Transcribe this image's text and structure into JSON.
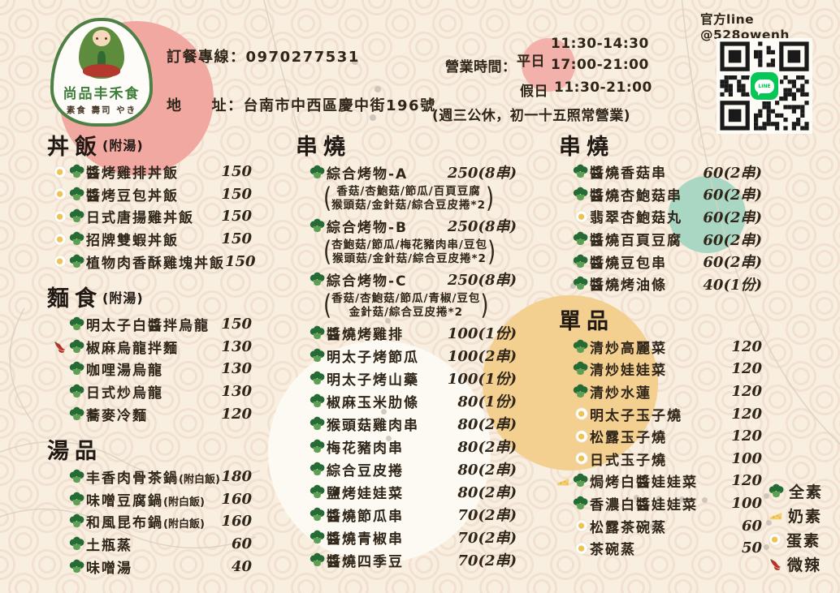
{
  "restaurant": {
    "logo_title": "尚品丰禾食",
    "logo_subtitle": "素食 壽司 やき",
    "phone": "訂餐專線：0970277531",
    "address_label": "地",
    "address_value": "址：台南市中西區慶中街196號",
    "line_label": "官方line @528owenh"
  },
  "hours": {
    "label": "營業時間：",
    "weekday_label": "平日",
    "weekday_time_1": "11:30-14:30",
    "weekday_time_2": "17:00-21:00",
    "holiday_label": "假日",
    "holiday_time": "11:30-21:00",
    "note": "(週三公休，初一十五照常營業)"
  },
  "columns": [
    {
      "sections": [
        {
          "title": "丼飯",
          "title_note": "(附湯)",
          "items": [
            {
              "icons": [
                "egg",
                "broccoli"
              ],
              "name": "醬烤雞排丼飯",
              "price": "150"
            },
            {
              "icons": [
                "egg",
                "broccoli"
              ],
              "name": "醬烤豆包丼飯",
              "price": "150"
            },
            {
              "icons": [
                "egg",
                "broccoli"
              ],
              "name": "日式唐揚雞丼飯",
              "price": "150"
            },
            {
              "icons": [
                "egg",
                "broccoli"
              ],
              "name": "招牌雙蝦丼飯",
              "price": "150"
            },
            {
              "icons": [
                "egg",
                "broccoli"
              ],
              "name": "植物肉香酥雞塊丼飯",
              "price": "150"
            }
          ]
        },
        {
          "title": "麵食",
          "title_note": "(附湯)",
          "items": [
            {
              "icons": [
                "broccoli"
              ],
              "name": "明太子白醬拌烏龍",
              "price": "150"
            },
            {
              "icons": [
                "chili",
                "broccoli"
              ],
              "name": "椒麻烏龍拌麵",
              "price": "130"
            },
            {
              "icons": [
                "broccoli"
              ],
              "name": "咖哩湯烏龍",
              "price": "130"
            },
            {
              "icons": [
                "broccoli"
              ],
              "name": "日式炒烏龍",
              "price": "130"
            },
            {
              "icons": [
                "broccoli"
              ],
              "name": "蕎麥冷麵",
              "price": "120"
            }
          ]
        },
        {
          "title": "湯品",
          "items": [
            {
              "icons": [
                "broccoli"
              ],
              "name": "丰香肉骨茶鍋",
              "note": "(附白飯)",
              "price": "180"
            },
            {
              "icons": [
                "broccoli"
              ],
              "name": "味噌豆腐鍋",
              "note": "(附白飯)",
              "price": "160"
            },
            {
              "icons": [
                "broccoli"
              ],
              "name": "和風昆布鍋",
              "note": "(附白飯)",
              "price": "160"
            },
            {
              "icons": [
                "broccoli"
              ],
              "name": "土瓶蒸",
              "price": "60"
            },
            {
              "icons": [
                "broccoli"
              ],
              "name": "味噌湯",
              "price": "40"
            }
          ]
        }
      ]
    },
    {
      "sections": [
        {
          "title": "串燒",
          "items": [
            {
              "icons": [
                "broccoli"
              ],
              "name": "綜合烤物-A",
              "price": "250(8串)",
              "sub": [
                "香菇/杏鮑菇/節瓜/百頁豆腐",
                "猴頭菇/金針菇/綜合豆皮捲*2"
              ]
            },
            {
              "icons": [
                "broccoli"
              ],
              "name": "綜合烤物-B",
              "price": "250(8串)",
              "sub": [
                "杏鮑菇/節瓜/梅花豬肉串/豆包",
                "猴頭菇/金針菇/綜合豆皮捲*2"
              ]
            },
            {
              "icons": [
                "broccoli"
              ],
              "name": "綜合烤物-C",
              "price": "250(8串)",
              "sub": [
                "香菇/杏鮑菇/節瓜/青椒/豆包",
                "金針菇/綜合豆皮捲*2"
              ]
            },
            {
              "icons": [
                "broccoli"
              ],
              "name": "醬燒烤雞排",
              "price": "100(1份)"
            },
            {
              "icons": [
                "broccoli"
              ],
              "name": "明太子烤節瓜",
              "price": "100(2串)"
            },
            {
              "icons": [
                "broccoli"
              ],
              "name": "明太子烤山藥",
              "price": "100(1份)"
            },
            {
              "icons": [
                "broccoli"
              ],
              "name": "椒麻玉米肋條",
              "price": "80(1份)"
            },
            {
              "icons": [
                "broccoli"
              ],
              "name": "猴頭菇雞肉串",
              "price": "80(2串)"
            },
            {
              "icons": [
                "broccoli"
              ],
              "name": "梅花豬肉串",
              "price": "80(2串)"
            },
            {
              "icons": [
                "broccoli"
              ],
              "name": "綜合豆皮捲",
              "price": "80(2串)"
            },
            {
              "icons": [
                "broccoli"
              ],
              "name": "鹽烤娃娃菜",
              "price": "80(2串)"
            },
            {
              "icons": [
                "broccoli"
              ],
              "name": "醬燒節瓜串",
              "price": "70(2串)"
            },
            {
              "icons": [
                "broccoli"
              ],
              "name": "醬燒青椒串",
              "price": "70(2串)"
            },
            {
              "icons": [
                "broccoli"
              ],
              "name": "醬燒四季豆",
              "price": "70(2串)"
            }
          ]
        }
      ]
    },
    {
      "sections": [
        {
          "title": "串燒",
          "items": [
            {
              "icons": [
                "broccoli"
              ],
              "name": "醬燒香菇串",
              "price": "60(2串)"
            },
            {
              "icons": [
                "broccoli"
              ],
              "name": "醬燒杏鮑菇串",
              "price": "60(2串)"
            },
            {
              "icons": [
                "egg"
              ],
              "name": "翡翠杏鮑菇丸",
              "price": "60(2串)"
            },
            {
              "icons": [
                "broccoli"
              ],
              "name": "醬燒百頁豆腐",
              "price": "60(2串)"
            },
            {
              "icons": [
                "broccoli"
              ],
              "name": "醬燒豆包串",
              "price": "60(2串)"
            },
            {
              "icons": [
                "broccoli"
              ],
              "name": "醬燒烤油條",
              "price": "40(1份)"
            }
          ]
        },
        {
          "title": "單品",
          "items": [
            {
              "icons": [
                "broccoli"
              ],
              "name": "清炒高麗菜",
              "price": "120"
            },
            {
              "icons": [
                "broccoli"
              ],
              "name": "清炒娃娃菜",
              "price": "120"
            },
            {
              "icons": [
                "broccoli"
              ],
              "name": "清炒水蓮",
              "price": "120"
            },
            {
              "icons": [
                "egg"
              ],
              "name": "明太子玉子燒",
              "price": "120"
            },
            {
              "icons": [
                "egg"
              ],
              "name": "松露玉子燒",
              "price": "120"
            },
            {
              "icons": [
                "egg"
              ],
              "name": "日式玉子燒",
              "price": "100"
            },
            {
              "icons": [
                "cheese",
                "broccoli"
              ],
              "name": "焗烤白醬娃娃菜",
              "price": "120"
            },
            {
              "icons": [
                "broccoli"
              ],
              "name": "香濃白醬娃娃菜",
              "price": "100"
            },
            {
              "icons": [
                "egg"
              ],
              "name": "松露茶碗蒸",
              "price": "60"
            },
            {
              "icons": [
                "egg"
              ],
              "name": "茶碗蒸",
              "price": "50"
            }
          ]
        }
      ]
    }
  ],
  "legend": [
    {
      "icon": "broccoli",
      "label": "全素"
    },
    {
      "icon": "cheese",
      "label": "奶素"
    },
    {
      "icon": "egg",
      "label": "蛋素"
    },
    {
      "icon": "chili",
      "label": "微辣"
    }
  ],
  "colors": {
    "background_cream": "#f8efe1",
    "pattern_ring": "#eed6c4",
    "accent_pink": "#f0a8a1",
    "accent_teal": "#a9d7c3",
    "accent_tan": "#f3cf90",
    "logo_green": "#4e7f44",
    "line_green": "#06c755",
    "text": "#2f2519"
  }
}
